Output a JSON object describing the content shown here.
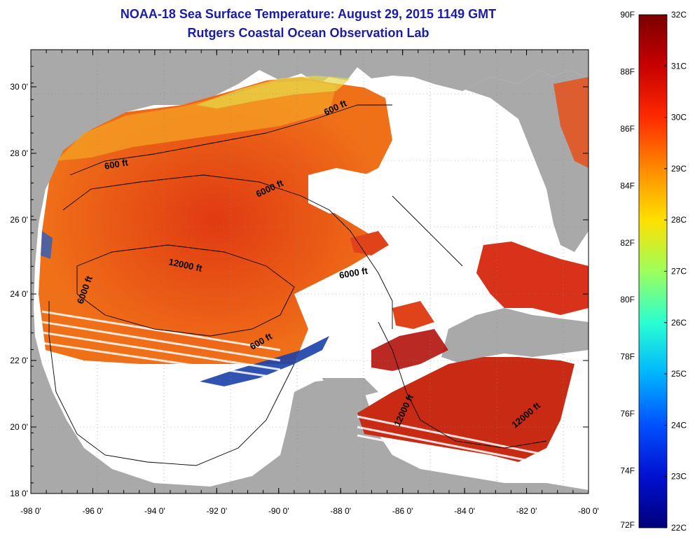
{
  "title_line1": "NOAA-18 Sea Surface Temperature:  August 29, 2015 1149 GMT",
  "title_line2": "Rutgers Coastal Ocean Observation Lab",
  "lat_ticks": [
    "30 0'",
    "28 0'",
    "26 0'",
    "24 0'",
    "22 0'",
    "20 0'",
    "18 0'"
  ],
  "lon_ticks": [
    "-98 0'",
    "-96 0'",
    "-94 0'",
    "-92 0'",
    "-90 0'",
    "-88 0'",
    "-86 0'",
    "-84 0'",
    "-82 0'",
    "-80 0'"
  ],
  "colorbar": {
    "f_labels": [
      "90F",
      "88F",
      "86F",
      "84F",
      "82F",
      "80F",
      "78F",
      "76F",
      "74F",
      "72F"
    ],
    "c_labels": [
      "32C",
      "31C",
      "30C",
      "29C",
      "28C",
      "27C",
      "26C",
      "25C",
      "24C",
      "23C",
      "22C"
    ]
  },
  "contour_labels": [
    "600 ft",
    "600 ft",
    "6000 ft",
    "12000 ft",
    "6000 ft",
    "6000 ft",
    "600 ft",
    "12000 ft",
    "12000 ft"
  ],
  "colors": {
    "title": "#1b1ba8",
    "land": "#a9a9a9",
    "no_data": "#ffffff",
    "warm": "#e8401a",
    "hot": "#b3120c",
    "cool": "#1a3fa8"
  }
}
